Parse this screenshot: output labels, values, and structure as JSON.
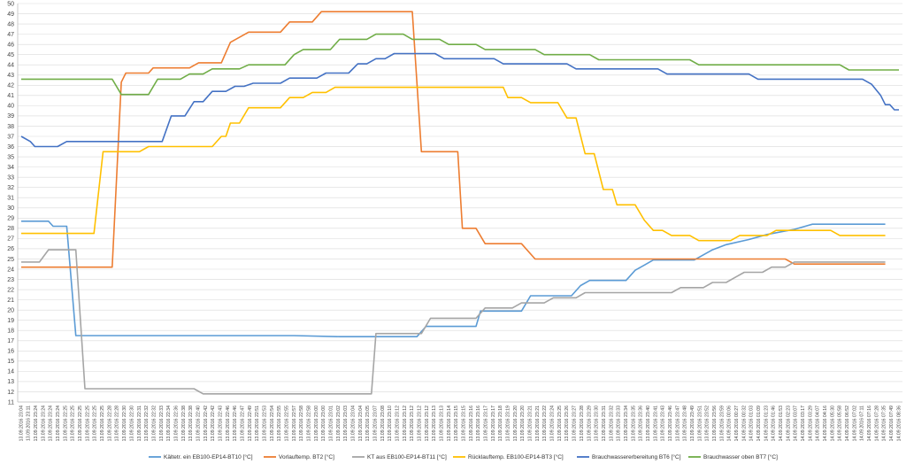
{
  "chart_data": {
    "type": "line",
    "ylim": [
      11,
      50
    ],
    "grid": "horizontal",
    "legend_position": "bottom",
    "x": [
      "13.09.2016 23:04",
      "13.09.2016 23:11",
      "13.09.2016 23:24",
      "13.09.2016 23:24",
      "13.09.2016 23:24",
      "13.09.2016 23:24",
      "13.09.2016 22:25",
      "13.09.2016 22:25",
      "13.09.2016 22:25",
      "13.09.2016 22:25",
      "13.09.2016 22:25",
      "13.09.2016 22:25",
      "13.09.2016 22:28",
      "13.09.2016 22:28",
      "13.09.2016 22:30",
      "13.09.2016 22:30",
      "13.09.2016 22:31",
      "13.09.2016 22:32",
      "13.09.2016 22:32",
      "13.09.2016 22:33",
      "13.09.2016 22:34",
      "13.09.2016 22:36",
      "13.09.2016 22:38",
      "13.09.2016 22:38",
      "13.09.2016 22:40",
      "13.09.2016 22:42",
      "13.09.2016 22:42",
      "13.09.2016 22:43",
      "13.09.2016 22:46",
      "13.09.2016 22:46",
      "13.09.2016 22:47",
      "13.09.2016 22:49",
      "13.09.2016 22:51",
      "13.09.2016 22:53",
      "13.09.2016 22:54",
      "13.09.2016 22:55",
      "13.09.2016 22:55",
      "13.09.2016 22:57",
      "13.09.2016 22:58",
      "13.09.2016 22:58",
      "13.09.2016 23:00",
      "13.09.2016 23:00",
      "13.09.2016 23:01",
      "13.09.2016 23:02",
      "13.09.2016 23:03",
      "13.09.2016 23:04",
      "13.09.2016 23:04",
      "13.09.2016 23:05",
      "13.09.2016 23:07",
      "13.09.2016 23:08",
      "13.09.2016 23:10",
      "13.09.2016 23:12",
      "13.09.2016 23:12",
      "13.09.2016 23:12",
      "13.09.2016 23:12",
      "13.09.2016 23:12",
      "13.09.2016 23:13",
      "13.09.2016 23:13",
      "13.09.2016 23:14",
      "13.09.2016 23:15",
      "13.09.2016 23:15",
      "13.09.2016 23:16",
      "13.09.2016 23:16",
      "13.09.2016 23:17",
      "13.09.2016 23:17",
      "13.09.2016 23:18",
      "13.09.2016 23:19",
      "13.09.2016 23:20",
      "13.09.2016 23:20",
      "13.09.2016 23:21",
      "13.09.2016 23:21",
      "13.09.2016 23:22",
      "13.09.2016 23:24",
      "13.09.2016 23:25",
      "13.09.2016 23:26",
      "13.09.2016 23:27",
      "13.09.2016 23:28",
      "13.09.2016 23:29",
      "13.09.2016 23:30",
      "13.09.2016 23:31",
      "13.09.2016 23:32",
      "13.09.2016 23:33",
      "13.09.2016 23:34",
      "13.09.2016 23:35",
      "13.09.2016 23:36",
      "13.09.2016 23:40",
      "13.09.2016 23:41",
      "13.09.2016 23:43",
      "13.09.2016 23:46",
      "13.09.2016 23:47",
      "13.09.2016 23:48",
      "13.09.2016 23:49",
      "13.09.2016 23:51",
      "13.09.2016 23:52",
      "13.09.2016 23:56",
      "13.09.2016 23:59",
      "14.09.2016 00:06",
      "14.09.2016 00:27",
      "14.09.2016 00:32",
      "14.09.2016 01:03",
      "14.09.2016 01:09",
      "14.09.2016 01:23",
      "14.09.2016 01:46",
      "14.09.2016 01:53",
      "14.09.2016 02:23",
      "14.09.2016 03:07",
      "14.09.2016 03:17",
      "14.09.2016 03:29",
      "14.09.2016 04:07",
      "14.09.2016 04:16",
      "14.09.2016 05:30",
      "14.09.2016 05:58",
      "14.09.2016 06:52",
      "14.09.2016 07:02",
      "14.09.2016 07:11",
      "14.09.2016 07:16",
      "14.09.2016 07:28",
      "14.09.2016 07:35",
      "14.09.2016 07:49",
      "14.09.2016 08:36"
    ],
    "series": [
      {
        "name": "Kältetr. ein EB100-EP14-BT10 [°C]",
        "color": "#5b9bd5",
        "values": [
          [
            0,
            28.7
          ],
          [
            6,
            28.7
          ],
          [
            7,
            28.2
          ],
          [
            10,
            28.2
          ],
          [
            12,
            17.5
          ],
          [
            60,
            17.5
          ],
          [
            70,
            17.4
          ],
          [
            87,
            17.4
          ],
          [
            89,
            18.4
          ],
          [
            100,
            18.4
          ],
          [
            101,
            19.9
          ],
          [
            110,
            19.9
          ],
          [
            112,
            21.4
          ],
          [
            121,
            21.4
          ],
          [
            123,
            22.4
          ],
          [
            125,
            22.9
          ],
          [
            133,
            22.9
          ],
          [
            135,
            23.9
          ],
          [
            137,
            24.4
          ],
          [
            139,
            24.9
          ],
          [
            148,
            24.9
          ],
          [
            150,
            25.4
          ],
          [
            152,
            25.9
          ],
          [
            155,
            26.4
          ],
          [
            160,
            26.9
          ],
          [
            164,
            27.4
          ],
          [
            170,
            27.9
          ],
          [
            174,
            28.4
          ],
          [
            190,
            28.4
          ]
        ]
      },
      {
        "name": "Vorlauftemp. BT2 [°C]",
        "color": "#ed7d31",
        "values": [
          [
            0,
            24.2
          ],
          [
            20,
            24.2
          ],
          [
            22,
            42.3
          ],
          [
            23,
            43.2
          ],
          [
            28,
            43.2
          ],
          [
            29,
            43.7
          ],
          [
            37,
            43.7
          ],
          [
            39,
            44.2
          ],
          [
            44,
            44.2
          ],
          [
            46,
            46.2
          ],
          [
            48,
            46.7
          ],
          [
            50,
            47.2
          ],
          [
            57,
            47.2
          ],
          [
            59,
            48.2
          ],
          [
            64,
            48.2
          ],
          [
            66,
            49.2
          ],
          [
            83,
            49.2
          ],
          [
            84,
            49.2
          ],
          [
            85,
            49.2
          ],
          [
            86,
            49.2
          ],
          [
            88,
            35.5
          ],
          [
            96,
            35.5
          ],
          [
            97,
            28.0
          ],
          [
            100,
            28.0
          ],
          [
            102,
            26.5
          ],
          [
            110,
            26.5
          ],
          [
            113,
            25.0
          ],
          [
            168,
            25.0
          ],
          [
            170,
            24.5
          ],
          [
            190,
            24.5
          ]
        ]
      },
      {
        "name": "KT aus EB100-EP14-BT11 [°C]",
        "color": "#a5a5a5",
        "values": [
          [
            0,
            24.7
          ],
          [
            4,
            24.7
          ],
          [
            6,
            25.9
          ],
          [
            12,
            25.9
          ],
          [
            14,
            12.3
          ],
          [
            38,
            12.3
          ],
          [
            40,
            11.8
          ],
          [
            77,
            11.8
          ],
          [
            78,
            17.7
          ],
          [
            88,
            17.7
          ],
          [
            90,
            19.2
          ],
          [
            100,
            19.2
          ],
          [
            102,
            20.2
          ],
          [
            108,
            20.2
          ],
          [
            110,
            20.7
          ],
          [
            115,
            20.7
          ],
          [
            117,
            21.2
          ],
          [
            122,
            21.2
          ],
          [
            124,
            21.7
          ],
          [
            143,
            21.7
          ],
          [
            145,
            22.2
          ],
          [
            150,
            22.2
          ],
          [
            152,
            22.7
          ],
          [
            155,
            22.7
          ],
          [
            157,
            23.2
          ],
          [
            159,
            23.7
          ],
          [
            163,
            23.7
          ],
          [
            165,
            24.2
          ],
          [
            168,
            24.2
          ],
          [
            170,
            24.7
          ],
          [
            190,
            24.7
          ]
        ]
      },
      {
        "name": "Rücklauftemp. EB100-EP14-BT3 [°C]",
        "color": "#ffc000",
        "values": [
          [
            0,
            27.5
          ],
          [
            16,
            27.5
          ],
          [
            18,
            35.5
          ],
          [
            26,
            35.5
          ],
          [
            28,
            36.0
          ],
          [
            42,
            36.0
          ],
          [
            44,
            37.0
          ],
          [
            45,
            37.0
          ],
          [
            46,
            38.3
          ],
          [
            48,
            38.3
          ],
          [
            50,
            39.8
          ],
          [
            57,
            39.8
          ],
          [
            59,
            40.8
          ],
          [
            62,
            40.8
          ],
          [
            64,
            41.3
          ],
          [
            67,
            41.3
          ],
          [
            69,
            41.8
          ],
          [
            106,
            41.8
          ],
          [
            107,
            40.8
          ],
          [
            110,
            40.8
          ],
          [
            112,
            40.3
          ],
          [
            118,
            40.3
          ],
          [
            120,
            38.8
          ],
          [
            122,
            38.8
          ],
          [
            124,
            35.3
          ],
          [
            126,
            35.3
          ],
          [
            128,
            31.8
          ],
          [
            130,
            31.8
          ],
          [
            131,
            30.3
          ],
          [
            135,
            30.3
          ],
          [
            137,
            28.8
          ],
          [
            139,
            27.8
          ],
          [
            141,
            27.8
          ],
          [
            143,
            27.3
          ],
          [
            147,
            27.3
          ],
          [
            149,
            26.8
          ],
          [
            156,
            26.8
          ],
          [
            158,
            27.3
          ],
          [
            164,
            27.3
          ],
          [
            166,
            27.8
          ],
          [
            178,
            27.8
          ],
          [
            180,
            27.3
          ],
          [
            190,
            27.3
          ]
        ]
      },
      {
        "name": "Brauchwassererbereitung BT6 [°C]",
        "color": "#4472c4",
        "values": [
          [
            0,
            37.0
          ],
          [
            2,
            36.5
          ],
          [
            3,
            36.0
          ],
          [
            8,
            36.0
          ],
          [
            10,
            36.5
          ],
          [
            26,
            36.5
          ],
          [
            28,
            36.5
          ],
          [
            31,
            36.5
          ],
          [
            33,
            39.0
          ],
          [
            36,
            39.0
          ],
          [
            38,
            40.4
          ],
          [
            40,
            40.4
          ],
          [
            42,
            41.4
          ],
          [
            45,
            41.4
          ],
          [
            47,
            41.9
          ],
          [
            49,
            41.9
          ],
          [
            51,
            42.2
          ],
          [
            57,
            42.2
          ],
          [
            59,
            42.7
          ],
          [
            65,
            42.7
          ],
          [
            67,
            43.2
          ],
          [
            72,
            43.2
          ],
          [
            74,
            44.1
          ],
          [
            76,
            44.1
          ],
          [
            78,
            44.6
          ],
          [
            80,
            44.6
          ],
          [
            82,
            45.1
          ],
          [
            91,
            45.1
          ],
          [
            93,
            44.6
          ],
          [
            104,
            44.6
          ],
          [
            106,
            44.1
          ],
          [
            120,
            44.1
          ],
          [
            122,
            43.6
          ],
          [
            140,
            43.6
          ],
          [
            142,
            43.1
          ],
          [
            160,
            43.1
          ],
          [
            162,
            42.6
          ],
          [
            185,
            42.6
          ],
          [
            187,
            42.1
          ],
          [
            189,
            41.0
          ],
          [
            190,
            40.1
          ],
          [
            191,
            40.1
          ],
          [
            192,
            39.6
          ],
          [
            193,
            39.6
          ]
        ]
      },
      {
        "name": "Brauchwasser oben BT7 [°C]",
        "color": "#70ad47",
        "values": [
          [
            0,
            42.6
          ],
          [
            20,
            42.6
          ],
          [
            22,
            41.1
          ],
          [
            28,
            41.1
          ],
          [
            30,
            42.6
          ],
          [
            35,
            42.6
          ],
          [
            37,
            43.1
          ],
          [
            40,
            43.1
          ],
          [
            42,
            43.6
          ],
          [
            48,
            43.6
          ],
          [
            50,
            44.0
          ],
          [
            58,
            44.0
          ],
          [
            60,
            45.0
          ],
          [
            62,
            45.5
          ],
          [
            68,
            45.5
          ],
          [
            70,
            46.5
          ],
          [
            76,
            46.5
          ],
          [
            78,
            47.0
          ],
          [
            84,
            47.0
          ],
          [
            86,
            46.5
          ],
          [
            92,
            46.5
          ],
          [
            94,
            46.0
          ],
          [
            100,
            46.0
          ],
          [
            102,
            45.5
          ],
          [
            113,
            45.5
          ],
          [
            115,
            45.0
          ],
          [
            125,
            45.0
          ],
          [
            127,
            44.5
          ],
          [
            147,
            44.5
          ],
          [
            149,
            44.0
          ],
          [
            180,
            44.0
          ],
          [
            182,
            43.5
          ],
          [
            193,
            43.5
          ]
        ]
      }
    ]
  }
}
